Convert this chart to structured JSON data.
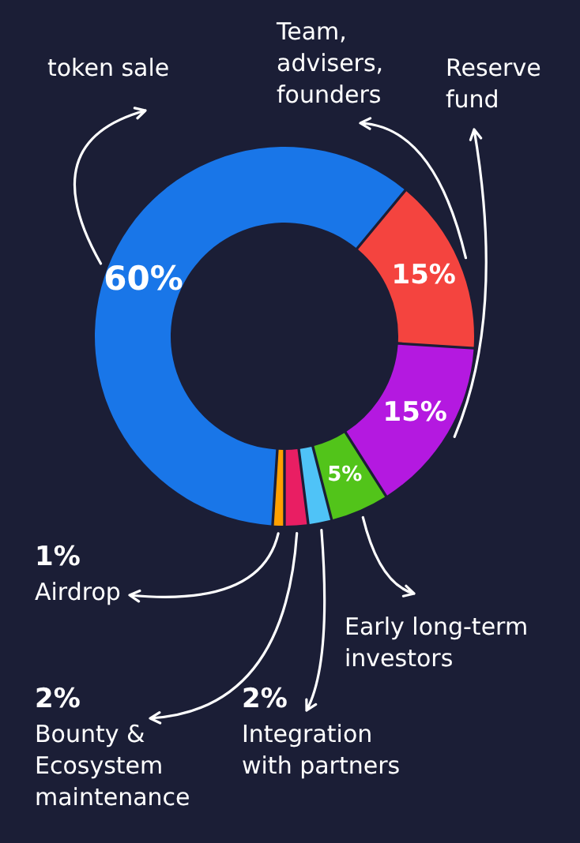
{
  "chart_data": {
    "type": "donut",
    "categories": [
      "Team, advisers, founders",
      "Reserve fund",
      "Early long-term investors",
      "Integration with partners",
      "Bounty & Ecosystem maintenance",
      "Airdrop",
      "token sale"
    ],
    "values": [
      15,
      15,
      5,
      2,
      2,
      1,
      60
    ],
    "colors": [
      "#f4443f",
      "#b419e0",
      "#52c41a",
      "#4fc3f7",
      "#e91e63",
      "#ffa000",
      "#1976e8"
    ],
    "value_labels": [
      "15%",
      "15%",
      "5%",
      "2%",
      "2%",
      "1%",
      "60%"
    ]
  }
}
